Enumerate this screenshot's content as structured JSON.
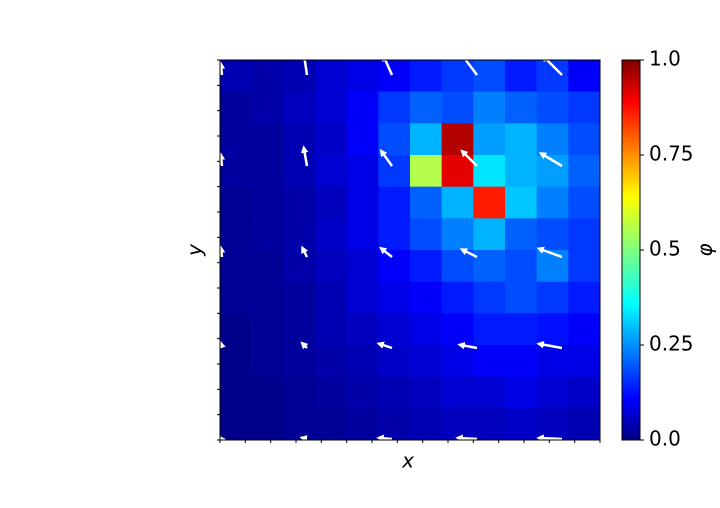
{
  "chart_data": {
    "type": "heatmap",
    "x_label": "x",
    "y_label": "y",
    "colorbar_label": "φ",
    "clim": [
      0,
      1
    ],
    "cticks": [
      {
        "value": 0,
        "label": "0.0"
      },
      0.25,
      0.5,
      0.75,
      {
        "value": 1,
        "label": "1.0"
      }
    ],
    "colormap": "jet",
    "z": [
      [
        0.05,
        0.04,
        0.05,
        0.08,
        0.1,
        0.12,
        0.15,
        0.18,
        0.2,
        0.15,
        0.18,
        0.12
      ],
      [
        0.03,
        0.04,
        0.06,
        0.08,
        0.12,
        0.18,
        0.22,
        0.2,
        0.25,
        0.22,
        0.2,
        0.18
      ],
      [
        0.03,
        0.03,
        0.05,
        0.07,
        0.12,
        0.2,
        0.3,
        0.95,
        0.28,
        0.3,
        0.25,
        0.2
      ],
      [
        0.03,
        0.03,
        0.05,
        0.08,
        0.1,
        0.18,
        0.55,
        0.9,
        0.35,
        0.3,
        0.28,
        0.22
      ],
      [
        0.02,
        0.03,
        0.04,
        0.06,
        0.1,
        0.15,
        0.22,
        0.3,
        0.85,
        0.32,
        0.25,
        0.2
      ],
      [
        0.02,
        0.03,
        0.04,
        0.07,
        0.1,
        0.15,
        0.2,
        0.25,
        0.3,
        0.22,
        0.2,
        0.18
      ],
      [
        0.02,
        0.02,
        0.04,
        0.06,
        0.08,
        0.12,
        0.15,
        0.2,
        0.22,
        0.2,
        0.25,
        0.18
      ],
      [
        0.02,
        0.02,
        0.03,
        0.05,
        0.08,
        0.1,
        0.12,
        0.15,
        0.18,
        0.2,
        0.18,
        0.15
      ],
      [
        0.01,
        0.02,
        0.03,
        0.05,
        0.06,
        0.08,
        0.1,
        0.12,
        0.15,
        0.15,
        0.14,
        0.12
      ],
      [
        0.01,
        0.02,
        0.03,
        0.04,
        0.05,
        0.07,
        0.08,
        0.1,
        0.12,
        0.12,
        0.1,
        0.1
      ],
      [
        0.01,
        0.01,
        0.02,
        0.03,
        0.04,
        0.05,
        0.06,
        0.08,
        0.08,
        0.1,
        0.08,
        0.07
      ],
      [
        0.01,
        0.01,
        0.02,
        0.02,
        0.03,
        0.04,
        0.05,
        0.06,
        0.06,
        0.07,
        0.06,
        0.05
      ]
    ],
    "quiver": {
      "color": "#ffffff",
      "u": [
        [
          -1,
          -3,
          -8,
          -15,
          -18
        ],
        [
          -1,
          -3,
          -10,
          -14,
          -20
        ],
        [
          -1,
          -4,
          -10,
          -14,
          -22
        ],
        [
          -1,
          -4,
          -12,
          -16,
          -22
        ],
        [
          0,
          -4,
          -12,
          -18,
          -22
        ]
      ],
      "v": [
        [
          10,
          20,
          18,
          20,
          18
        ],
        [
          10,
          17,
          14,
          14,
          12
        ],
        [
          8,
          8,
          8,
          7,
          8
        ],
        [
          4,
          4,
          4,
          3,
          4
        ],
        [
          0,
          1,
          1,
          1,
          1
        ]
      ]
    }
  }
}
